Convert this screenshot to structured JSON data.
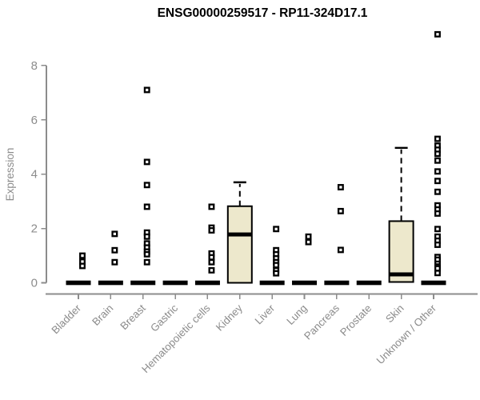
{
  "chart_data": {
    "type": "boxplot",
    "title": "ENSG00000259517 - RP11-324D17.1",
    "ylabel": "Expression",
    "xlabel": "",
    "yticks": [
      0,
      2,
      4,
      6,
      8
    ],
    "ylim": [
      0,
      9.4
    ],
    "grid": false,
    "legend": "none",
    "colors": {
      "box_fill": "#EDE8CC",
      "box_stroke": "#000000",
      "median": "#000000",
      "outlier": "#000000",
      "axis": "#8c8c8c",
      "tick_label": "#8c8c8c",
      "title": "#000000",
      "background": "#ffffff"
    },
    "categories": [
      "Bladder",
      "Brain",
      "Breast",
      "Gastric",
      "Hematopoietic cells",
      "Kidney",
      "Liver",
      "Lung",
      "Pancreas",
      "Prostate",
      "Skin",
      "Unknown / Other"
    ],
    "boxes": [
      {
        "category": "Bladder",
        "low": 0,
        "q1": 0,
        "median": 0,
        "q3": 0,
        "high": 0,
        "outliers": [
          1.0,
          0.78,
          0.62
        ]
      },
      {
        "category": "Brain",
        "low": 0,
        "q1": 0,
        "median": 0,
        "q3": 0,
        "high": 0,
        "outliers": [
          1.8,
          1.2,
          0.76
        ]
      },
      {
        "category": "Breast",
        "low": 0,
        "q1": 0,
        "median": 0,
        "q3": 0,
        "high": 0,
        "outliers": [
          7.1,
          4.45,
          3.6,
          2.8,
          1.85,
          1.7,
          1.45,
          1.3,
          1.15,
          1.05,
          0.76
        ]
      },
      {
        "category": "Gastric",
        "low": 0,
        "q1": 0,
        "median": 0,
        "q3": 0,
        "high": 0,
        "outliers": []
      },
      {
        "category": "Hematopoietic cells",
        "low": 0,
        "q1": 0,
        "median": 0,
        "q3": 0,
        "high": 0,
        "outliers": [
          2.8,
          2.03,
          1.93,
          1.08,
          0.94,
          0.76,
          0.46
        ]
      },
      {
        "category": "Kidney",
        "low": 0,
        "q1": 0,
        "median": 1.78,
        "q3": 2.82,
        "high": 3.7,
        "outliers": []
      },
      {
        "category": "Liver",
        "low": 0,
        "q1": 0,
        "median": 0,
        "q3": 0,
        "high": 0,
        "outliers": [
          1.98,
          1.2,
          1.05,
          0.9,
          0.76,
          0.65,
          0.46,
          0.35
        ]
      },
      {
        "category": "Lung",
        "low": 0,
        "q1": 0,
        "median": 0,
        "q3": 0,
        "high": 0,
        "outliers": [
          1.7,
          1.5
        ]
      },
      {
        "category": "Pancreas",
        "low": 0,
        "q1": 0,
        "median": 0,
        "q3": 0,
        "high": 0,
        "outliers": [
          3.52,
          2.64,
          1.21
        ]
      },
      {
        "category": "Prostate",
        "low": 0,
        "q1": 0,
        "median": 0,
        "q3": 0,
        "high": 0,
        "outliers": []
      },
      {
        "category": "Skin",
        "low": 0.03,
        "q1": 0.03,
        "median": 0.31,
        "q3": 2.27,
        "high": 4.97,
        "outliers": []
      },
      {
        "category": "Unknown / Other",
        "low": 0,
        "q1": 0,
        "median": 0,
        "q3": 0,
        "high": 0,
        "outliers": [
          9.15,
          5.3,
          5.05,
          4.9,
          4.75,
          4.5,
          4.1,
          3.75,
          3.35,
          2.85,
          2.7,
          2.55,
          1.98,
          1.7,
          1.55,
          1.4,
          0.95,
          0.85,
          0.7,
          0.6,
          0.53,
          0.36
        ]
      }
    ]
  }
}
